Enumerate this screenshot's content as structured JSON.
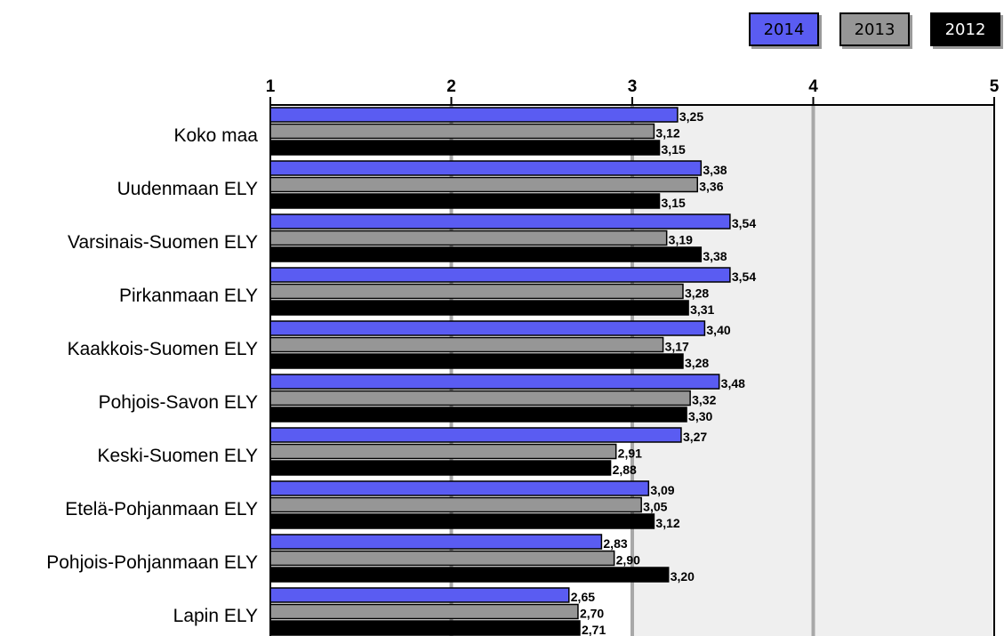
{
  "chart_data": {
    "type": "bar",
    "orientation": "horizontal",
    "categories": [
      "Koko maa",
      "Uudenmaan ELY",
      "Varsinais-Suomen ELY",
      "Pirkanmaan ELY",
      "Kaakkois-Suomen ELY",
      "Pohjois-Savon ELY",
      "Keski-Suomen ELY",
      "Etelä-Pohjanmaan ELY",
      "Pohjois-Pohjanmaan ELY",
      "Lapin ELY"
    ],
    "series": [
      {
        "name": "2014",
        "color": "#5a5cf2",
        "values": [
          3.25,
          3.38,
          3.54,
          3.54,
          3.4,
          3.48,
          3.27,
          3.09,
          2.83,
          2.65
        ],
        "labels": [
          "3,25",
          "3,38",
          "3,54",
          "3,54",
          "3,40",
          "3,48",
          "3,27",
          "3,09",
          "2,83",
          "2,65"
        ]
      },
      {
        "name": "2013",
        "color": "#969696",
        "values": [
          3.12,
          3.36,
          3.19,
          3.28,
          3.17,
          3.32,
          2.91,
          3.05,
          2.9,
          2.7
        ],
        "labels": [
          "3,12",
          "3,36",
          "3,19",
          "3,28",
          "3,17",
          "3,32",
          "2,91",
          "3,05",
          "2,90",
          "2,70"
        ]
      },
      {
        "name": "2012",
        "color": "#000000",
        "values": [
          3.15,
          3.15,
          3.38,
          3.31,
          3.28,
          3.3,
          2.88,
          3.12,
          3.2,
          2.71
        ],
        "labels": [
          "3,15",
          "3,15",
          "3,38",
          "3,31",
          "3,28",
          "3,30",
          "2,88",
          "3,12",
          "3,20",
          "2,71"
        ]
      }
    ],
    "xlim": [
      1,
      5
    ],
    "ticks": [
      "1",
      "2",
      "3",
      "4",
      "5"
    ],
    "grid": true,
    "shaded_band": [
      3,
      5
    ],
    "legend_position": "top-right",
    "axis_position": "top"
  }
}
